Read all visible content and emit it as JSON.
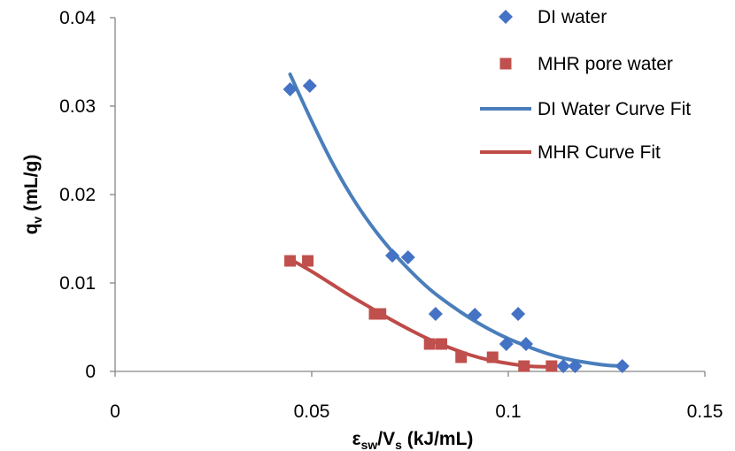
{
  "chart_data": {
    "type": "scatter",
    "xlabel": {
      "main": "ε",
      "main_sub": "sw",
      "sep": "/V",
      "sep_sub": "s",
      "unit": " (kJ/mL)"
    },
    "ylabel": {
      "main": "q",
      "main_sub": "v",
      "unit": " (mL/g)"
    },
    "xlim": [
      0,
      0.15
    ],
    "ylim": [
      0,
      0.04
    ],
    "xticks": [
      0,
      0.05,
      0.1,
      0.15
    ],
    "xtick_labels": [
      "0",
      "0.05",
      "0.1",
      "0.15"
    ],
    "yticks": [
      0,
      0.01,
      0.02,
      0.03,
      0.04
    ],
    "ytick_labels": [
      "0",
      "0.01",
      "0.02",
      "0.03",
      "0.04"
    ],
    "grid": false,
    "legend_position": "top-right",
    "series": [
      {
        "name": "DI water",
        "kind": "scatter",
        "marker": "diamond",
        "color": "#4472C4",
        "x": [
          0.0445,
          0.0495,
          0.0705,
          0.0745,
          0.0815,
          0.0915,
          0.0995,
          0.1025,
          0.1045,
          0.114,
          0.117,
          0.129
        ],
        "y": [
          0.0319,
          0.0323,
          0.0131,
          0.0129,
          0.0065,
          0.0064,
          0.0031,
          0.0065,
          0.0031,
          0.0006,
          0.0006,
          0.0006
        ]
      },
      {
        "name": "MHR pore water",
        "kind": "scatter",
        "marker": "square",
        "color": "#C0504D",
        "x": [
          0.0445,
          0.049,
          0.066,
          0.0675,
          0.08,
          0.083,
          0.088,
          0.096,
          0.104,
          0.111
        ],
        "y": [
          0.0125,
          0.0125,
          0.0065,
          0.0065,
          0.0031,
          0.0031,
          0.0016,
          0.0016,
          0.0006,
          0.0006
        ]
      },
      {
        "name": "DI Water Curve Fit",
        "kind": "line",
        "color": "#4A7EBB",
        "x": [
          0.0445,
          0.05,
          0.055,
          0.06,
          0.065,
          0.07,
          0.075,
          0.08,
          0.085,
          0.09,
          0.095,
          0.1,
          0.105,
          0.11,
          0.115,
          0.12,
          0.125,
          0.129
        ],
        "y": [
          0.0336,
          0.0283,
          0.0238,
          0.0199,
          0.0166,
          0.0138,
          0.0114,
          0.0093,
          0.0076,
          0.0061,
          0.0048,
          0.0037,
          0.0028,
          0.002,
          0.0014,
          0.001,
          0.0007,
          0.0006
        ]
      },
      {
        "name": "MHR Curve Fit",
        "kind": "line",
        "color": "#BE4B48",
        "x": [
          0.0445,
          0.05,
          0.055,
          0.06,
          0.065,
          0.07,
          0.075,
          0.08,
          0.085,
          0.09,
          0.095,
          0.1,
          0.105,
          0.111
        ],
        "y": [
          0.0127,
          0.0113,
          0.0099,
          0.0085,
          0.0072,
          0.0059,
          0.0047,
          0.0036,
          0.0027,
          0.0019,
          0.0013,
          0.0009,
          0.0006,
          0.0005
        ]
      }
    ]
  }
}
